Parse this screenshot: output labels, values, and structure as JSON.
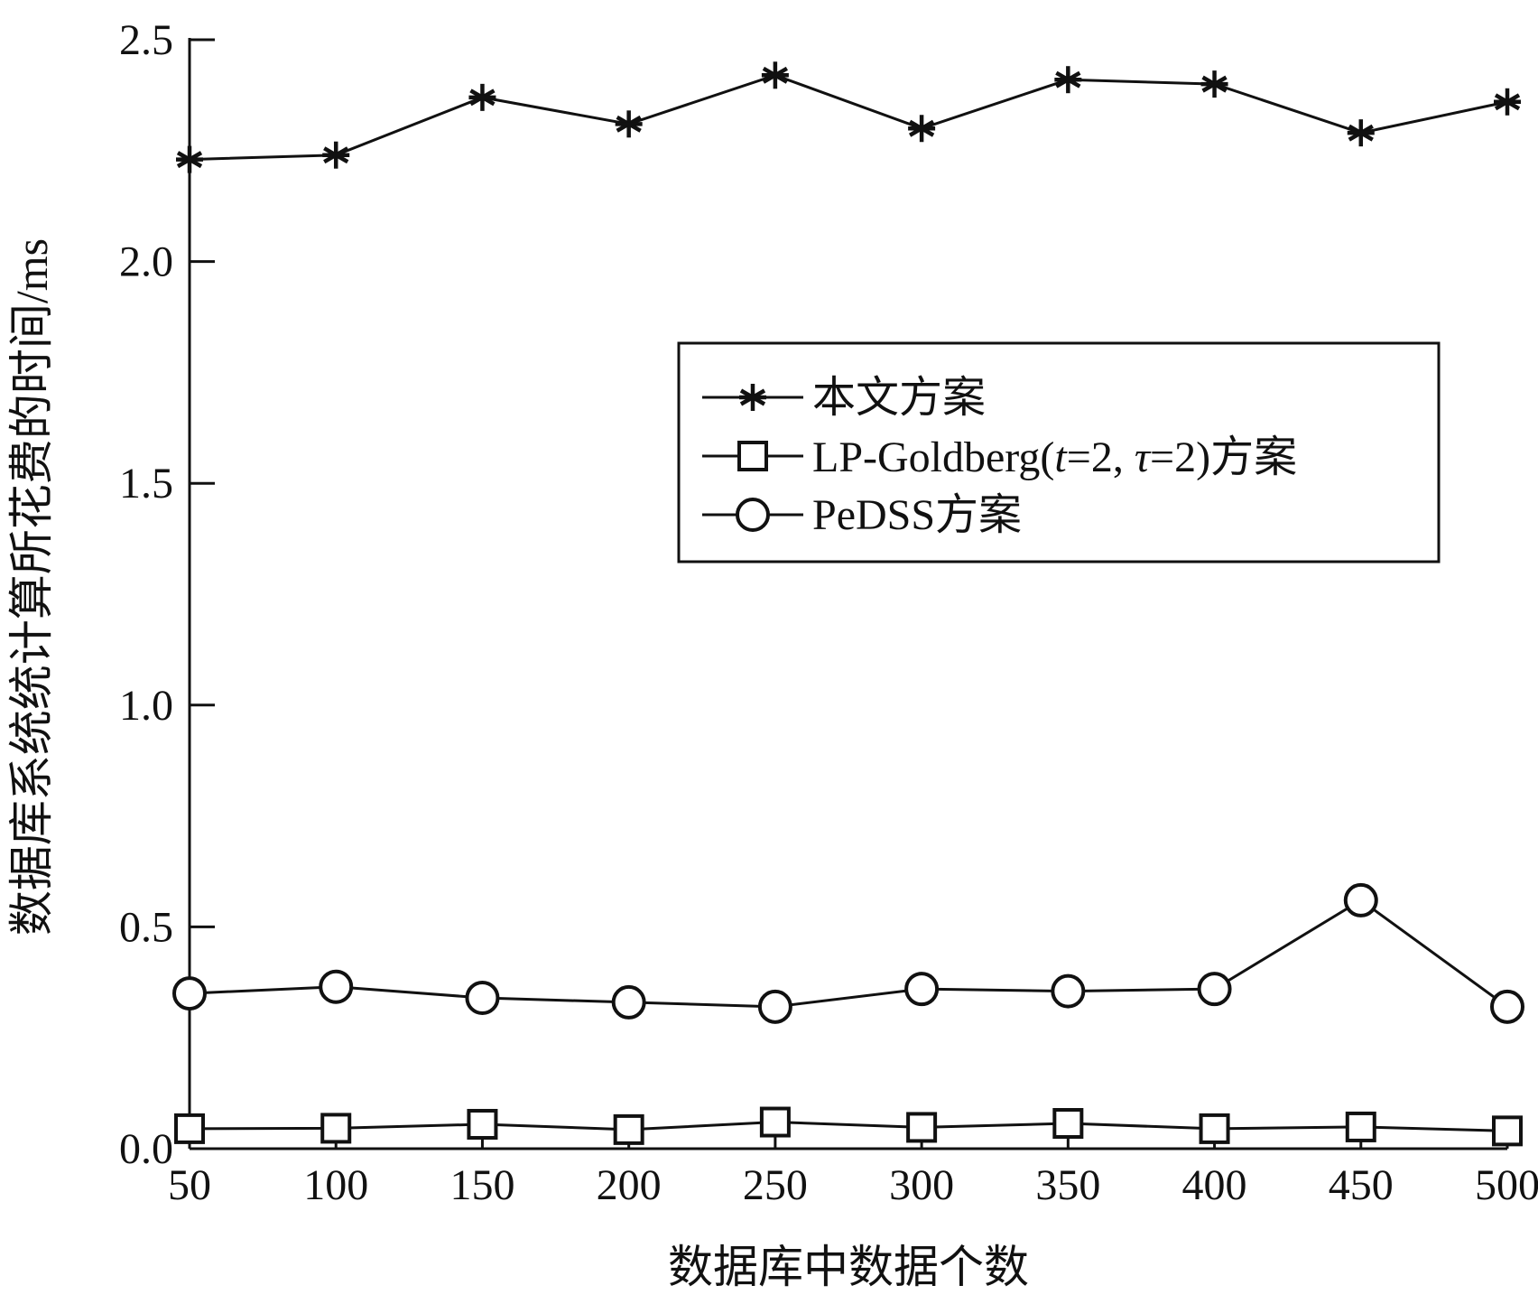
{
  "chart_data": {
    "type": "line",
    "xlabel": "数据库中数据个数",
    "ylabel": "数据库系统统计算所花费的时间/ms",
    "x": [
      50,
      100,
      150,
      200,
      250,
      300,
      350,
      400,
      450,
      500
    ],
    "xticks": [
      "50",
      "100",
      "150",
      "200",
      "250",
      "300",
      "350",
      "400",
      "450",
      "500"
    ],
    "yticks": [
      "0.0",
      "0.5",
      "1.0",
      "1.5",
      "2.0",
      "2.5"
    ],
    "ylim": [
      0,
      2.5
    ],
    "grid": false,
    "legend_position": "center-right",
    "series": [
      {
        "name": "本文方案",
        "marker": "asterisk",
        "values": [
          2.23,
          2.24,
          2.37,
          2.31,
          2.42,
          2.3,
          2.41,
          2.4,
          2.29,
          2.36
        ]
      },
      {
        "name": "LP-Goldberg(t=2, τ=2)方案",
        "legend_parts": {
          "prefix": "LP-Goldberg(",
          "var1": "t",
          "mid": "=2, ",
          "var2": "τ",
          "suffix": "=2)方案"
        },
        "marker": "square",
        "values": [
          0.045,
          0.046,
          0.055,
          0.043,
          0.06,
          0.048,
          0.057,
          0.045,
          0.049,
          0.04
        ]
      },
      {
        "name": "PeDSS方案",
        "marker": "circle",
        "values": [
          0.35,
          0.365,
          0.34,
          0.33,
          0.32,
          0.36,
          0.355,
          0.36,
          0.56,
          0.32
        ]
      }
    ]
  }
}
